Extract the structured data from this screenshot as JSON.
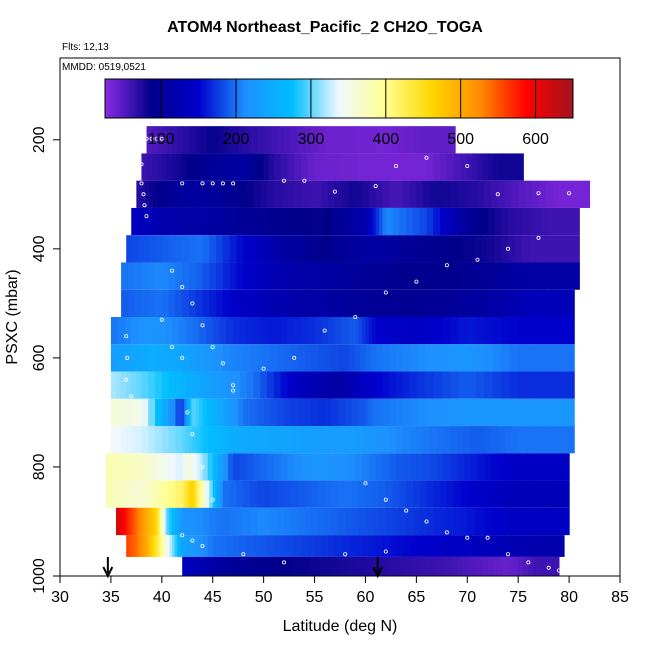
{
  "header": {
    "title": "ATOM4 Northeast_Pacific_2 CH2O_TOGA",
    "flts": "Flts: 12,13",
    "mmdd": "MMDD: 0519,0521"
  },
  "chart_data": {
    "type": "heatmap",
    "title": "ATOM4 Northeast_Pacific_2 CH2O_TOGA",
    "xlabel": "Latitude (deg N)",
    "ylabel": "PSXC (mbar)",
    "xlim": [
      30,
      85
    ],
    "ylim": [
      1000,
      50
    ],
    "y_reversed": true,
    "x_ticks": [
      30,
      35,
      40,
      45,
      50,
      55,
      60,
      65,
      70,
      75,
      80,
      85
    ],
    "y_ticks": [
      200,
      400,
      600,
      800,
      1000
    ],
    "grid": false,
    "colorbar": {
      "position": "top-inside",
      "range": [
        25,
        650
      ],
      "ticks": [
        100,
        200,
        300,
        400,
        500,
        600
      ],
      "colors": [
        "#8a2be2",
        "#00008b",
        "#0000cd",
        "#1e90ff",
        "#00bfff",
        "#f0f8ff",
        "#ffff8f",
        "#ffd700",
        "#ff8c00",
        "#ff0000",
        "#a0141e"
      ]
    },
    "rows": [
      {
        "p_top": 175,
        "p_bot": 225,
        "lat_min": 38.5,
        "lat_max": 68.8,
        "cells": [
          [
            38.5,
            50
          ],
          [
            41.5,
            65
          ],
          [
            45,
            85
          ],
          [
            48,
            70
          ],
          [
            52,
            55
          ],
          [
            56,
            40
          ],
          [
            62,
            35
          ],
          [
            66,
            45
          ]
        ]
      },
      {
        "p_top": 225,
        "p_bot": 275,
        "lat_min": 38.0,
        "lat_max": 75.5,
        "cells": [
          [
            38,
            60
          ],
          [
            41,
            75
          ],
          [
            44,
            95
          ],
          [
            48,
            110
          ],
          [
            51,
            70
          ],
          [
            55,
            40
          ],
          [
            60,
            35
          ],
          [
            66,
            35
          ],
          [
            70,
            60
          ],
          [
            73,
            80
          ]
        ]
      },
      {
        "p_top": 275,
        "p_bot": 325,
        "lat_min": 37.5,
        "lat_max": 82.0,
        "cells": [
          [
            37.5,
            70
          ],
          [
            40,
            90
          ],
          [
            43,
            110
          ],
          [
            47,
            95
          ],
          [
            51,
            70
          ],
          [
            55,
            60
          ],
          [
            59,
            80
          ],
          [
            63,
            55
          ],
          [
            67,
            80
          ],
          [
            71,
            70
          ],
          [
            75,
            50
          ],
          [
            79,
            35
          ]
        ]
      },
      {
        "p_top": 325,
        "p_bot": 375,
        "lat_min": 37.0,
        "lat_max": 81.0,
        "cells": [
          [
            37,
            140
          ],
          [
            40,
            120
          ],
          [
            44,
            110
          ],
          [
            48,
            100
          ],
          [
            52,
            90
          ],
          [
            56,
            85
          ],
          [
            60,
            120
          ],
          [
            62,
            210
          ],
          [
            66,
            180
          ],
          [
            70,
            100
          ],
          [
            74,
            70
          ],
          [
            78,
            60
          ]
        ]
      },
      {
        "p_top": 375,
        "p_bot": 425,
        "lat_min": 36.5,
        "lat_max": 81.0,
        "cells": [
          [
            36.5,
            180
          ],
          [
            40,
            190
          ],
          [
            44,
            200
          ],
          [
            48,
            150
          ],
          [
            52,
            110
          ],
          [
            56,
            90
          ],
          [
            60,
            110
          ],
          [
            64,
            100
          ],
          [
            68,
            90
          ],
          [
            72,
            80
          ],
          [
            76,
            60
          ]
        ]
      },
      {
        "p_top": 425,
        "p_bot": 475,
        "lat_min": 36.0,
        "lat_max": 81.0,
        "cells": [
          [
            36,
            200
          ],
          [
            40,
            210
          ],
          [
            44,
            190
          ],
          [
            48,
            150
          ],
          [
            52,
            120
          ],
          [
            56,
            110
          ],
          [
            60,
            100
          ],
          [
            64,
            90
          ],
          [
            68,
            90
          ],
          [
            72,
            100
          ],
          [
            76,
            110
          ]
        ]
      },
      {
        "p_top": 475,
        "p_bot": 525,
        "lat_min": 36.0,
        "lat_max": 80.5,
        "cells": [
          [
            36,
            190
          ],
          [
            40,
            200
          ],
          [
            44,
            170
          ],
          [
            48,
            140
          ],
          [
            52,
            120
          ],
          [
            56,
            110
          ],
          [
            60,
            100
          ],
          [
            64,
            95
          ],
          [
            68,
            100
          ],
          [
            72,
            110
          ],
          [
            76,
            130
          ]
        ]
      },
      {
        "p_top": 525,
        "p_bot": 575,
        "lat_min": 35.0,
        "lat_max": 80.5,
        "cells": [
          [
            35,
            200
          ],
          [
            39,
            220
          ],
          [
            43,
            200
          ],
          [
            47,
            170
          ],
          [
            51,
            160
          ],
          [
            55,
            170
          ],
          [
            59,
            190
          ],
          [
            61,
            150
          ],
          [
            65,
            140
          ],
          [
            70,
            160
          ],
          [
            75,
            150
          ]
        ]
      },
      {
        "p_top": 575,
        "p_bot": 625,
        "lat_min": 35.0,
        "lat_max": 80.5,
        "cells": [
          [
            35,
            230
          ],
          [
            39,
            250
          ],
          [
            42,
            240
          ],
          [
            46,
            210
          ],
          [
            50,
            200
          ],
          [
            54,
            190
          ],
          [
            58,
            180
          ],
          [
            61,
            200
          ],
          [
            65,
            210
          ],
          [
            70,
            220
          ],
          [
            75,
            200
          ]
        ]
      },
      {
        "p_top": 625,
        "p_bot": 675,
        "lat_min": 35.0,
        "lat_max": 80.5,
        "cells": [
          [
            35,
            320
          ],
          [
            38,
            300
          ],
          [
            42,
            260
          ],
          [
            45,
            230
          ],
          [
            49,
            200
          ],
          [
            53,
            140
          ],
          [
            57,
            110
          ],
          [
            61,
            150
          ],
          [
            65,
            170
          ],
          [
            70,
            190
          ],
          [
            75,
            170
          ]
        ]
      },
      {
        "p_top": 675,
        "p_bot": 725,
        "lat_min": 35.0,
        "lat_max": 80.5,
        "cells": [
          [
            35,
            360
          ],
          [
            38,
            350
          ],
          [
            42,
            170
          ],
          [
            43,
            300
          ],
          [
            45,
            260
          ],
          [
            48,
            200
          ],
          [
            52,
            180
          ],
          [
            56,
            170
          ],
          [
            60,
            190
          ],
          [
            61,
            200
          ],
          [
            65,
            210
          ],
          [
            70,
            220
          ],
          [
            75,
            220
          ]
        ]
      },
      {
        "p_top": 725,
        "p_bot": 775,
        "lat_min": 35.0,
        "lat_max": 80.5,
        "cells": [
          [
            35,
            340
          ],
          [
            38,
            330
          ],
          [
            42,
            300
          ],
          [
            44,
            280
          ],
          [
            47,
            250
          ],
          [
            51,
            240
          ],
          [
            55,
            230
          ],
          [
            59,
            230
          ],
          [
            63,
            210
          ],
          [
            67,
            200
          ],
          [
            71,
            190
          ],
          [
            75,
            200
          ]
        ]
      },
      {
        "p_top": 775,
        "p_bot": 825,
        "lat_min": 34.5,
        "lat_max": 80.0,
        "cells": [
          [
            34.5,
            380
          ],
          [
            38,
            370
          ],
          [
            42,
            330
          ],
          [
            42.5,
            360
          ],
          [
            44,
            320
          ],
          [
            47,
            180
          ],
          [
            51,
            200
          ],
          [
            55,
            220
          ],
          [
            59,
            210
          ],
          [
            63,
            190
          ],
          [
            67,
            180
          ],
          [
            71,
            160
          ],
          [
            75,
            140
          ]
        ]
      },
      {
        "p_top": 825,
        "p_bot": 875,
        "lat_min": 34.5,
        "lat_max": 80.0,
        "cells": [
          [
            34.5,
            380
          ],
          [
            38,
            360
          ],
          [
            42,
            420
          ],
          [
            43,
            470
          ],
          [
            44,
            380
          ],
          [
            46,
            200
          ],
          [
            50,
            180
          ],
          [
            54,
            190
          ],
          [
            58,
            200
          ],
          [
            62,
            190
          ],
          [
            66,
            170
          ],
          [
            70,
            150
          ],
          [
            75,
            130
          ]
        ]
      },
      {
        "p_top": 875,
        "p_bot": 925,
        "lat_min": 35.5,
        "lat_max": 80.0,
        "cells": [
          [
            35.5,
            620
          ],
          [
            36.5,
            580
          ],
          [
            37.5,
            540
          ],
          [
            38.5,
            500
          ],
          [
            39.5,
            460
          ],
          [
            40.5,
            300
          ],
          [
            42,
            220
          ],
          [
            46,
            200
          ],
          [
            50,
            210
          ],
          [
            54,
            200
          ],
          [
            58,
            190
          ],
          [
            62,
            180
          ],
          [
            66,
            170
          ],
          [
            70,
            160
          ],
          [
            75,
            140
          ]
        ]
      },
      {
        "p_top": 925,
        "p_bot": 965,
        "lat_min": 36.5,
        "lat_max": 79.5,
        "cells": [
          [
            36.5,
            560
          ],
          [
            37.5,
            540
          ],
          [
            38.5,
            500
          ],
          [
            39.5,
            440
          ],
          [
            40.5,
            350
          ],
          [
            42,
            240
          ],
          [
            45,
            200
          ],
          [
            49,
            190
          ],
          [
            53,
            180
          ],
          [
            57,
            170
          ],
          [
            61,
            160
          ],
          [
            65,
            150
          ],
          [
            69,
            140
          ],
          [
            73,
            130
          ],
          [
            77,
            120
          ]
        ]
      },
      {
        "p_top": 965,
        "p_bot": 1000,
        "lat_min": 42.0,
        "lat_max": 79.0,
        "cells": [
          [
            42,
            140
          ],
          [
            44,
            120
          ],
          [
            47,
            100
          ],
          [
            50,
            90
          ],
          [
            53,
            85
          ],
          [
            56,
            80
          ],
          [
            59,
            75
          ],
          [
            62,
            70
          ],
          [
            65,
            65
          ],
          [
            68,
            60
          ],
          [
            71,
            50
          ],
          [
            74,
            40
          ],
          [
            77,
            60
          ]
        ]
      }
    ],
    "sample_points": [
      [
        38.5,
        198
      ],
      [
        39,
        198
      ],
      [
        39.5,
        198
      ],
      [
        40,
        198
      ],
      [
        38,
        245
      ],
      [
        37.5,
        260
      ],
      [
        38,
        280
      ],
      [
        38.2,
        300
      ],
      [
        38.3,
        320
      ],
      [
        38.5,
        340
      ],
      [
        42,
        280
      ],
      [
        44,
        280
      ],
      [
        45,
        280
      ],
      [
        46,
        280
      ],
      [
        47,
        280
      ],
      [
        52,
        275
      ],
      [
        54,
        275
      ],
      [
        57,
        295
      ],
      [
        61,
        285
      ],
      [
        63,
        248
      ],
      [
        66,
        233
      ],
      [
        70,
        248
      ],
      [
        73,
        300
      ],
      [
        77,
        298
      ],
      [
        80,
        298
      ],
      [
        36.5,
        560
      ],
      [
        36.6,
        600
      ],
      [
        36.5,
        640
      ],
      [
        37,
        670
      ],
      [
        41,
        440
      ],
      [
        42,
        470
      ],
      [
        43,
        500
      ],
      [
        44,
        540
      ],
      [
        45,
        580
      ],
      [
        46,
        610
      ],
      [
        47,
        660
      ],
      [
        40,
        530
      ],
      [
        41,
        580
      ],
      [
        42,
        600
      ],
      [
        42.5,
        700
      ],
      [
        43,
        740
      ],
      [
        44,
        800
      ],
      [
        45,
        860
      ],
      [
        47,
        650
      ],
      [
        50,
        620
      ],
      [
        53,
        600
      ],
      [
        56,
        550
      ],
      [
        59,
        525
      ],
      [
        62,
        480
      ],
      [
        65,
        460
      ],
      [
        68,
        430
      ],
      [
        71,
        420
      ],
      [
        74,
        400
      ],
      [
        77,
        380
      ],
      [
        60,
        830
      ],
      [
        62,
        860
      ],
      [
        64,
        880
      ],
      [
        66,
        900
      ],
      [
        68,
        920
      ],
      [
        70,
        930
      ],
      [
        72,
        930
      ],
      [
        74,
        960
      ],
      [
        76,
        975
      ],
      [
        78,
        985
      ],
      [
        79,
        990
      ],
      [
        42,
        925
      ],
      [
        43,
        935
      ],
      [
        44,
        945
      ],
      [
        48,
        960
      ],
      [
        52,
        975
      ],
      [
        58,
        960
      ],
      [
        62,
        955
      ]
    ],
    "arrows": [
      34.7,
      61.2
    ]
  }
}
